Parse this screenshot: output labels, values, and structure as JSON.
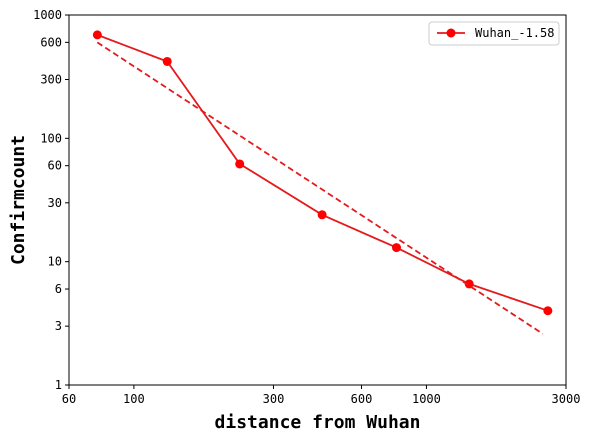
{
  "chart_data": {
    "type": "line",
    "xscale": "log",
    "yscale": "log",
    "xlabel": "distance from Wuhan",
    "ylabel": "Confirmcount",
    "xlim": [
      60,
      3000
    ],
    "ylim": [
      1,
      1000
    ],
    "xticks": [
      {
        "value": 60,
        "label": "60"
      },
      {
        "value": 100,
        "label": "100"
      },
      {
        "value": 300,
        "label": "300"
      },
      {
        "value": 600,
        "label": "600"
      },
      {
        "value": 1000,
        "label": "1000"
      },
      {
        "value": 3000,
        "label": "3000"
      }
    ],
    "yticks": [
      {
        "value": 1,
        "label": "1"
      },
      {
        "value": 3,
        "label": "3"
      },
      {
        "value": 6,
        "label": "6"
      },
      {
        "value": 10,
        "label": "10"
      },
      {
        "value": 30,
        "label": "30"
      },
      {
        "value": 60,
        "label": "60"
      },
      {
        "value": 100,
        "label": "100"
      },
      {
        "value": 300,
        "label": "300"
      },
      {
        "value": 600,
        "label": "600"
      },
      {
        "value": 1000,
        "label": "1000"
      }
    ],
    "grid": false,
    "legend": {
      "placement": "top-right",
      "entries": [
        "Wuhan_-1.58"
      ]
    },
    "series": [
      {
        "name": "Wuhan_-1.58",
        "color": "#e41a1c",
        "line_style": "solid",
        "marker": "circle",
        "x": [
          75,
          130,
          230,
          440,
          790,
          1400,
          2600
        ],
        "y": [
          690,
          420,
          62,
          24,
          13,
          6.6,
          4.0
        ]
      },
      {
        "color": "#e41a1c",
        "line_style": "dashed",
        "marker": "none",
        "x": [
          75,
          2500
        ],
        "y": [
          600,
          2.6
        ]
      }
    ]
  }
}
